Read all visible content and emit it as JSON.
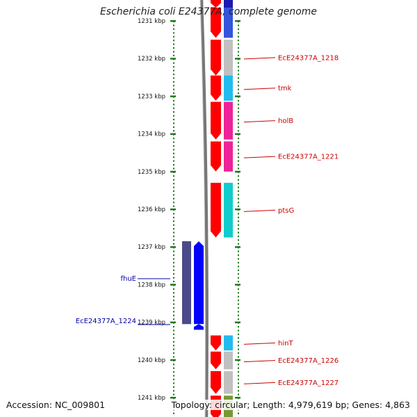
{
  "header": {
    "title": "Escherichia coli E24377A, complete genome"
  },
  "footer": {
    "accession": "Accession: NC_009801",
    "summary": "Topology: circular; Length: 4,979,619 bp; Genes: 4,863"
  },
  "colors": {
    "backbone": "#777777",
    "forward_gene": "#ff0000",
    "reverse_gene": "#0000ff",
    "forward_label": "#cc0000",
    "reverse_label": "#0000aa",
    "tick": "#1f7a1f"
  },
  "ruler": {
    "unit": "kbp",
    "ticks": [
      {
        "value": 1231,
        "label": "1231 kbp"
      },
      {
        "value": 1232,
        "label": "1232 kbp"
      },
      {
        "value": 1233,
        "label": "1233 kbp"
      },
      {
        "value": 1234,
        "label": "1234 kbp"
      },
      {
        "value": 1235,
        "label": "1235 kbp"
      },
      {
        "value": 1236,
        "label": "1236 kbp"
      },
      {
        "value": 1237,
        "label": "1237 kbp"
      },
      {
        "value": 1238,
        "label": "1238 kbp"
      },
      {
        "value": 1239,
        "label": "1239 kbp"
      },
      {
        "value": 1240,
        "label": "1240 kbp"
      },
      {
        "value": 1241,
        "label": "1241 kbp"
      }
    ]
  },
  "forward_genes": [
    {
      "start": 1230.4,
      "end": 1230.65,
      "cog": "#1a1ab0",
      "label": ""
    },
    {
      "start": 1230.65,
      "end": 1231.45,
      "cog": "#3355dd",
      "label": ""
    },
    {
      "start": 1231.5,
      "end": 1232.45,
      "cog": "#c0c0c0",
      "label": "EcE24377A_1218"
    },
    {
      "start": 1232.45,
      "end": 1233.12,
      "cog": "#22bbee",
      "label": "tmk"
    },
    {
      "start": 1233.15,
      "end": 1234.15,
      "cog": "#ee2299",
      "label": "holB"
    },
    {
      "start": 1234.2,
      "end": 1235.0,
      "cog": "#ee2299",
      "label": "EcE24377A_1221"
    },
    {
      "start": 1235.3,
      "end": 1236.75,
      "cog": "#11cccc",
      "label": "ptsG"
    },
    {
      "start": 1239.35,
      "end": 1239.75,
      "cog": "#22bbee",
      "label": "hinT"
    },
    {
      "start": 1239.78,
      "end": 1240.25,
      "cog": "#c0c0c0",
      "label": "EcE24377A_1226"
    },
    {
      "start": 1240.3,
      "end": 1240.9,
      "cog": "#c0c0c0",
      "label": "EcE24377A_1227"
    },
    {
      "start": 1240.95,
      "end": 1241.6,
      "cog": "#779933",
      "label": ""
    }
  ],
  "reverse_genes": [
    {
      "start": 1236.85,
      "end": 1239.05,
      "cog": "#4a4a8a",
      "label": "fhuE"
    },
    {
      "start": 1239.05,
      "end": 1239.2,
      "cog": "",
      "label": "EcE24377A_1224"
    }
  ]
}
